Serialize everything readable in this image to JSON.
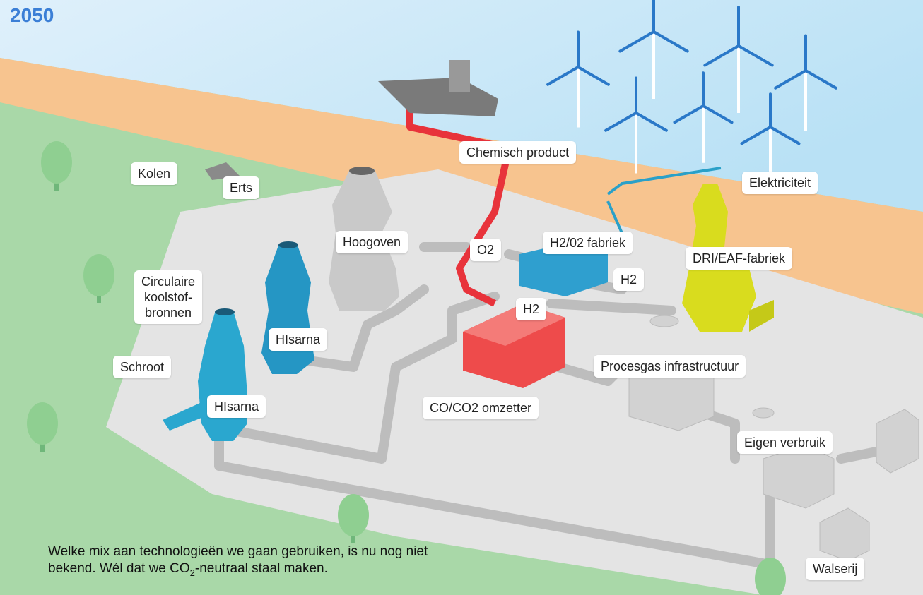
{
  "header": {
    "year": "2050"
  },
  "labels": [
    {
      "text": "Kolen"
    },
    {
      "text": "Erts"
    },
    {
      "text": "Chemisch product"
    },
    {
      "text": "Elektriciteit"
    },
    {
      "text": "Hoogoven"
    },
    {
      "text": "O2"
    },
    {
      "text": "H2/02 fabriek"
    },
    {
      "text": "DRI/EAF-fabriek"
    },
    {
      "text": "H2"
    },
    {
      "lines": [
        "Circulaire",
        "koolstof-",
        "bronnen"
      ]
    },
    {
      "text": "H2"
    },
    {
      "text": "HIsarna"
    },
    {
      "text": "Schroot"
    },
    {
      "text": "Procesgas infrastructuur"
    },
    {
      "text": "HIsarna"
    },
    {
      "text": "CO/CO2 omzetter"
    },
    {
      "text": "Eigen verbruik"
    },
    {
      "text": "Walserij"
    }
  ],
  "caption": {
    "line1": "Welke mix aan technologieën we gaan gebruiken, is nu nog niet",
    "line2": [
      "bekend. Wél dat we CO",
      "2",
      "-neutraal staal maken."
    ]
  }
}
